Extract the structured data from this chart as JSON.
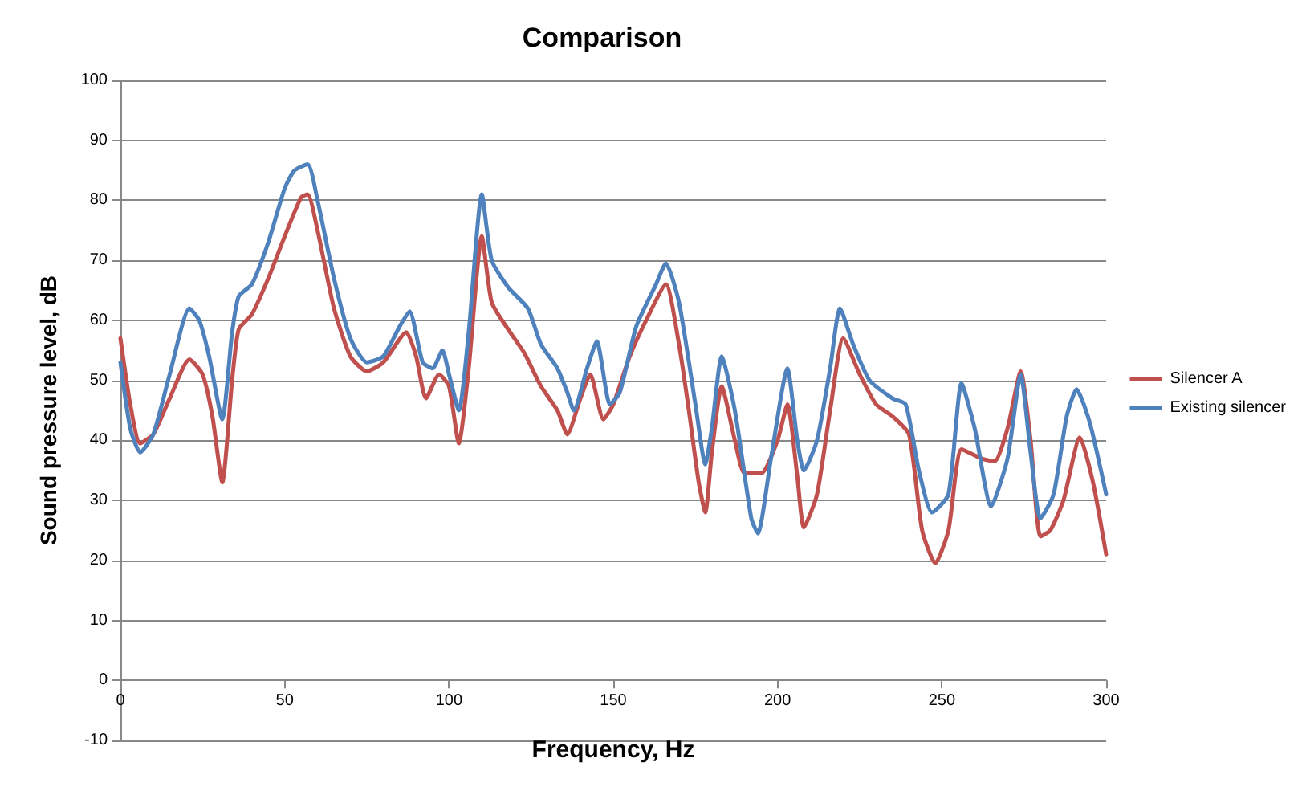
{
  "chart_data": {
    "type": "line",
    "title": "Comparison",
    "xlabel": "Frequency, Hz",
    "ylabel": "Sound pressure level, dB",
    "xlim": [
      0,
      300
    ],
    "xticks": [
      0,
      50,
      100,
      150,
      200,
      250,
      300
    ],
    "ylim": [
      -10,
      100
    ],
    "yticks": [
      -10,
      0,
      10,
      20,
      30,
      40,
      50,
      60,
      70,
      80,
      90,
      100
    ],
    "grid": "y",
    "legend": "right",
    "marker": "none",
    "line_style": "solid",
    "series": [
      {
        "name": "Silencer A",
        "color": "#c0504d",
        "x": [
          0,
          3,
          6,
          10,
          15,
          21,
          25,
          28,
          31,
          34,
          36,
          40,
          45,
          50,
          55,
          57,
          60,
          65,
          70,
          75,
          80,
          87,
          90,
          93,
          97,
          100,
          103,
          106,
          110,
          113,
          118,
          123,
          128,
          133,
          136,
          140,
          143,
          147,
          150,
          155,
          160,
          166,
          170,
          173,
          176,
          178,
          180,
          183,
          187,
          190,
          195,
          200,
          203,
          206,
          208,
          212,
          216,
          220,
          225,
          230,
          235,
          240,
          244,
          248,
          252,
          256,
          262,
          266,
          270,
          274,
          277,
          280,
          283,
          287,
          292,
          296,
          300
        ],
        "values": [
          57,
          46,
          39.5,
          41,
          47,
          53.5,
          51,
          44,
          33,
          50,
          58.5,
          61,
          67,
          74,
          80.5,
          81,
          75,
          62,
          54,
          51.5,
          53,
          58,
          54,
          47,
          51,
          49,
          39.5,
          52,
          74,
          63,
          58.5,
          54.5,
          49,
          45,
          41,
          47,
          51,
          43.5,
          46,
          54,
          60,
          66,
          56,
          45,
          33,
          28,
          38,
          49,
          40,
          34.5,
          34.5,
          40,
          46,
          34,
          25.5,
          31,
          45,
          57,
          51,
          46,
          44,
          41,
          25,
          19.5,
          25,
          38.5,
          37,
          36.5,
          42,
          51.5,
          40,
          24,
          25,
          30,
          40.5,
          33,
          21
        ]
      },
      {
        "name": "Existing silencer",
        "color": "#4f81bd",
        "x": [
          0,
          3,
          6,
          10,
          15,
          21,
          24,
          27,
          31,
          34,
          36,
          40,
          45,
          50,
          53,
          57,
          60,
          65,
          70,
          75,
          80,
          85,
          88,
          92,
          95,
          98,
          100,
          103,
          106,
          110,
          113,
          118,
          124,
          128,
          133,
          136,
          138,
          142,
          145,
          149,
          152,
          157,
          163,
          166,
          170,
          175,
          178,
          180,
          183,
          187,
          192,
          194,
          198,
          203,
          206,
          208,
          212,
          216,
          219,
          223,
          228,
          235,
          239,
          243,
          247,
          252,
          256,
          260,
          265,
          270,
          274,
          277,
          280,
          284,
          288,
          291,
          295,
          300
        ],
        "values": [
          53,
          42,
          38,
          41,
          51,
          62,
          60,
          54,
          43.5,
          58,
          64,
          66,
          73,
          82,
          85,
          86,
          80,
          67,
          57,
          53,
          54,
          59,
          61.5,
          53,
          52,
          55,
          51,
          45,
          58,
          81,
          70,
          65.5,
          62,
          56,
          52,
          48,
          45,
          52,
          56.5,
          46,
          48,
          59,
          66,
          69.5,
          63,
          46,
          36,
          42,
          54,
          45,
          27,
          24.5,
          37,
          52,
          40,
          35,
          40,
          52,
          62,
          56,
          50,
          47,
          46,
          35,
          28,
          31,
          49.5,
          42,
          29,
          37,
          51,
          38,
          27,
          31,
          44,
          48.5,
          43,
          31
        ]
      }
    ]
  }
}
